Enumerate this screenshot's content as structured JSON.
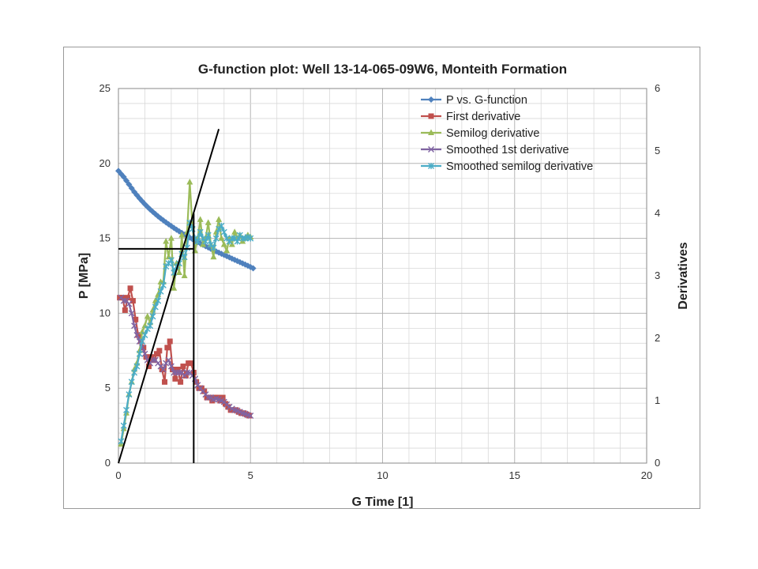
{
  "chart_data": {
    "type": "line",
    "title": "G-function plot: Well 13-14-065-09W6, Monteith Formation",
    "xlabel": "G Time [1]",
    "ylabel": "P [MPa]",
    "y2label": "Derivatives",
    "xlim": [
      0,
      20
    ],
    "ylim": [
      0,
      25
    ],
    "y2lim": [
      0,
      6
    ],
    "x_ticks": [
      "0",
      "5",
      "10",
      "15",
      "20"
    ],
    "y_ticks": [
      "0",
      "5",
      "10",
      "15",
      "20",
      "25"
    ],
    "y2_ticks": [
      "0",
      "1",
      "2",
      "3",
      "4",
      "5",
      "6"
    ],
    "grid": true,
    "legend_position": "top-right",
    "series": [
      {
        "name": "P vs. G-function",
        "axis": "left",
        "color": "#4f81bd",
        "marker": "diamond",
        "x": [
          0,
          0.1,
          0.2,
          0.3,
          0.4,
          0.5,
          0.6,
          0.7,
          0.8,
          0.9,
          1.0,
          1.1,
          1.2,
          1.3,
          1.4,
          1.5,
          1.6,
          1.7,
          1.8,
          1.9,
          2.0,
          2.1,
          2.2,
          2.3,
          2.4,
          2.5,
          2.6,
          2.7,
          2.8,
          2.9,
          3.0,
          3.1,
          3.2,
          3.3,
          3.4,
          3.5,
          3.6,
          3.7,
          3.8,
          3.9,
          4.0,
          4.1,
          4.2,
          4.3,
          4.4,
          4.5,
          4.6,
          4.7,
          4.8,
          4.9,
          5.0,
          5.1
        ],
        "y": [
          19.5,
          19.3,
          19.1,
          18.85,
          18.6,
          18.35,
          18.1,
          17.88,
          17.67,
          17.47,
          17.28,
          17.1,
          16.93,
          16.77,
          16.62,
          16.47,
          16.33,
          16.2,
          16.07,
          15.94,
          15.82,
          15.7,
          15.58,
          15.47,
          15.36,
          15.25,
          15.15,
          15.05,
          14.95,
          14.85,
          14.75,
          14.66,
          14.57,
          14.48,
          14.39,
          14.3,
          14.22,
          14.13,
          14.05,
          13.97,
          13.89,
          13.81,
          13.73,
          13.65,
          13.57,
          13.49,
          13.41,
          13.33,
          13.25,
          13.17,
          13.09,
          13.0
        ]
      },
      {
        "name": "First derivative",
        "axis": "right",
        "color": "#c0504d",
        "marker": "square",
        "x": [
          0.05,
          0.15,
          0.25,
          0.35,
          0.45,
          0.55,
          0.65,
          0.75,
          0.85,
          0.95,
          1.05,
          1.15,
          1.25,
          1.35,
          1.45,
          1.55,
          1.65,
          1.75,
          1.85,
          1.95,
          2.05,
          2.15,
          2.25,
          2.35,
          2.45,
          2.55,
          2.65,
          2.75,
          2.85,
          2.95,
          3.05,
          3.15,
          3.25,
          3.35,
          3.45,
          3.55,
          3.65,
          3.75,
          3.85,
          3.95,
          4.05,
          4.15,
          4.25,
          4.35,
          4.45,
          4.55,
          4.65,
          4.75,
          4.85,
          4.95
        ],
        "y": [
          2.65,
          2.65,
          2.45,
          2.65,
          2.8,
          2.6,
          2.3,
          2.05,
          1.95,
          1.85,
          1.7,
          1.55,
          1.7,
          1.65,
          1.75,
          1.8,
          1.5,
          1.3,
          1.85,
          1.95,
          1.5,
          1.35,
          1.5,
          1.3,
          1.55,
          1.4,
          1.6,
          1.6,
          1.45,
          1.3,
          1.2,
          1.2,
          1.15,
          1.05,
          1.05,
          1.0,
          1.05,
          1.05,
          1.0,
          1.05,
          0.95,
          0.9,
          0.85,
          0.85,
          0.85,
          0.82,
          0.8,
          0.8,
          0.78,
          0.76
        ]
      },
      {
        "name": "Semilog derivative",
        "axis": "right",
        "color": "#9bbb59",
        "marker": "triangle",
        "x": [
          0.1,
          0.2,
          0.3,
          0.4,
          0.5,
          0.6,
          0.7,
          0.8,
          0.9,
          1.0,
          1.1,
          1.2,
          1.3,
          1.4,
          1.5,
          1.6,
          1.7,
          1.8,
          1.9,
          2.0,
          2.1,
          2.2,
          2.3,
          2.4,
          2.5,
          2.6,
          2.7,
          2.8,
          2.9,
          3.0,
          3.1,
          3.2,
          3.3,
          3.4,
          3.5,
          3.6,
          3.7,
          3.8,
          3.9,
          4.0,
          4.1,
          4.2,
          4.3,
          4.4,
          4.5,
          4.6,
          4.7,
          4.8,
          4.9,
          5.0
        ],
        "y": [
          0.3,
          0.55,
          0.8,
          1.1,
          1.3,
          1.5,
          1.6,
          1.8,
          2.1,
          2.2,
          2.35,
          2.25,
          2.45,
          2.6,
          2.7,
          2.9,
          2.9,
          3.55,
          3.3,
          3.6,
          2.8,
          3.2,
          3.05,
          3.65,
          3.0,
          3.7,
          4.5,
          3.8,
          3.4,
          3.6,
          3.9,
          3.5,
          3.6,
          3.85,
          3.5,
          3.3,
          3.7,
          3.9,
          3.6,
          3.5,
          3.4,
          3.6,
          3.5,
          3.7,
          3.6,
          3.65,
          3.55,
          3.6,
          3.65,
          3.62
        ]
      },
      {
        "name": "Smoothed 1st derivative",
        "axis": "right",
        "color": "#8064a2",
        "marker": "x",
        "x": [
          0.1,
          0.2,
          0.3,
          0.4,
          0.5,
          0.6,
          0.7,
          0.8,
          0.9,
          1.0,
          1.1,
          1.2,
          1.3,
          1.4,
          1.5,
          1.6,
          1.7,
          1.8,
          1.9,
          2.0,
          2.1,
          2.2,
          2.3,
          2.4,
          2.5,
          2.6,
          2.7,
          2.8,
          2.9,
          3.0,
          3.1,
          3.2,
          3.3,
          3.4,
          3.5,
          3.6,
          3.7,
          3.8,
          3.9,
          4.0,
          4.1,
          4.2,
          4.3,
          4.4,
          4.5,
          4.6,
          4.7,
          4.8,
          4.9,
          5.0
        ],
        "y": [
          2.65,
          2.6,
          2.6,
          2.55,
          2.4,
          2.2,
          2.05,
          1.95,
          1.85,
          1.75,
          1.65,
          1.6,
          1.65,
          1.65,
          1.6,
          1.55,
          1.5,
          1.6,
          1.65,
          1.55,
          1.45,
          1.45,
          1.45,
          1.45,
          1.4,
          1.45,
          1.45,
          1.4,
          1.35,
          1.25,
          1.2,
          1.15,
          1.1,
          1.05,
          1.05,
          1.02,
          1.03,
          1.02,
          1.0,
          0.98,
          0.94,
          0.9,
          0.87,
          0.85,
          0.84,
          0.82,
          0.8,
          0.79,
          0.77,
          0.76
        ]
      },
      {
        "name": "Smoothed semilog derivative",
        "axis": "right",
        "color": "#4bacc6",
        "marker": "star",
        "x": [
          0.1,
          0.2,
          0.3,
          0.4,
          0.5,
          0.6,
          0.7,
          0.8,
          0.9,
          1.0,
          1.1,
          1.2,
          1.3,
          1.4,
          1.5,
          1.6,
          1.7,
          1.8,
          1.9,
          2.0,
          2.1,
          2.2,
          2.3,
          2.4,
          2.5,
          2.6,
          2.7,
          2.8,
          2.9,
          3.0,
          3.1,
          3.2,
          3.3,
          3.4,
          3.5,
          3.6,
          3.7,
          3.8,
          3.9,
          4.0,
          4.1,
          4.2,
          4.3,
          4.4,
          4.5,
          4.6,
          4.7,
          4.8,
          4.9,
          5.0
        ],
        "y": [
          0.35,
          0.6,
          0.85,
          1.1,
          1.3,
          1.45,
          1.55,
          1.75,
          1.95,
          2.05,
          2.15,
          2.2,
          2.35,
          2.5,
          2.6,
          2.75,
          2.85,
          3.15,
          3.2,
          3.25,
          3.05,
          3.15,
          3.2,
          3.35,
          3.3,
          3.45,
          3.85,
          3.75,
          3.6,
          3.55,
          3.7,
          3.6,
          3.55,
          3.65,
          3.5,
          3.45,
          3.6,
          3.75,
          3.8,
          3.7,
          3.6,
          3.55,
          3.6,
          3.6,
          3.55,
          3.65,
          3.6,
          3.6,
          3.62,
          3.6
        ]
      }
    ],
    "annotations": {
      "tangent_line": {
        "x": [
          0,
          3.8
        ],
        "y": [
          0,
          5.35
        ],
        "axis": "right"
      },
      "closure_vertical_line": {
        "x": 2.85,
        "y": [
          0,
          4.0
        ],
        "axis": "right"
      },
      "closure_pressure_line": {
        "x": [
          0,
          2.85
        ],
        "y": 14.3,
        "axis": "left"
      }
    }
  }
}
